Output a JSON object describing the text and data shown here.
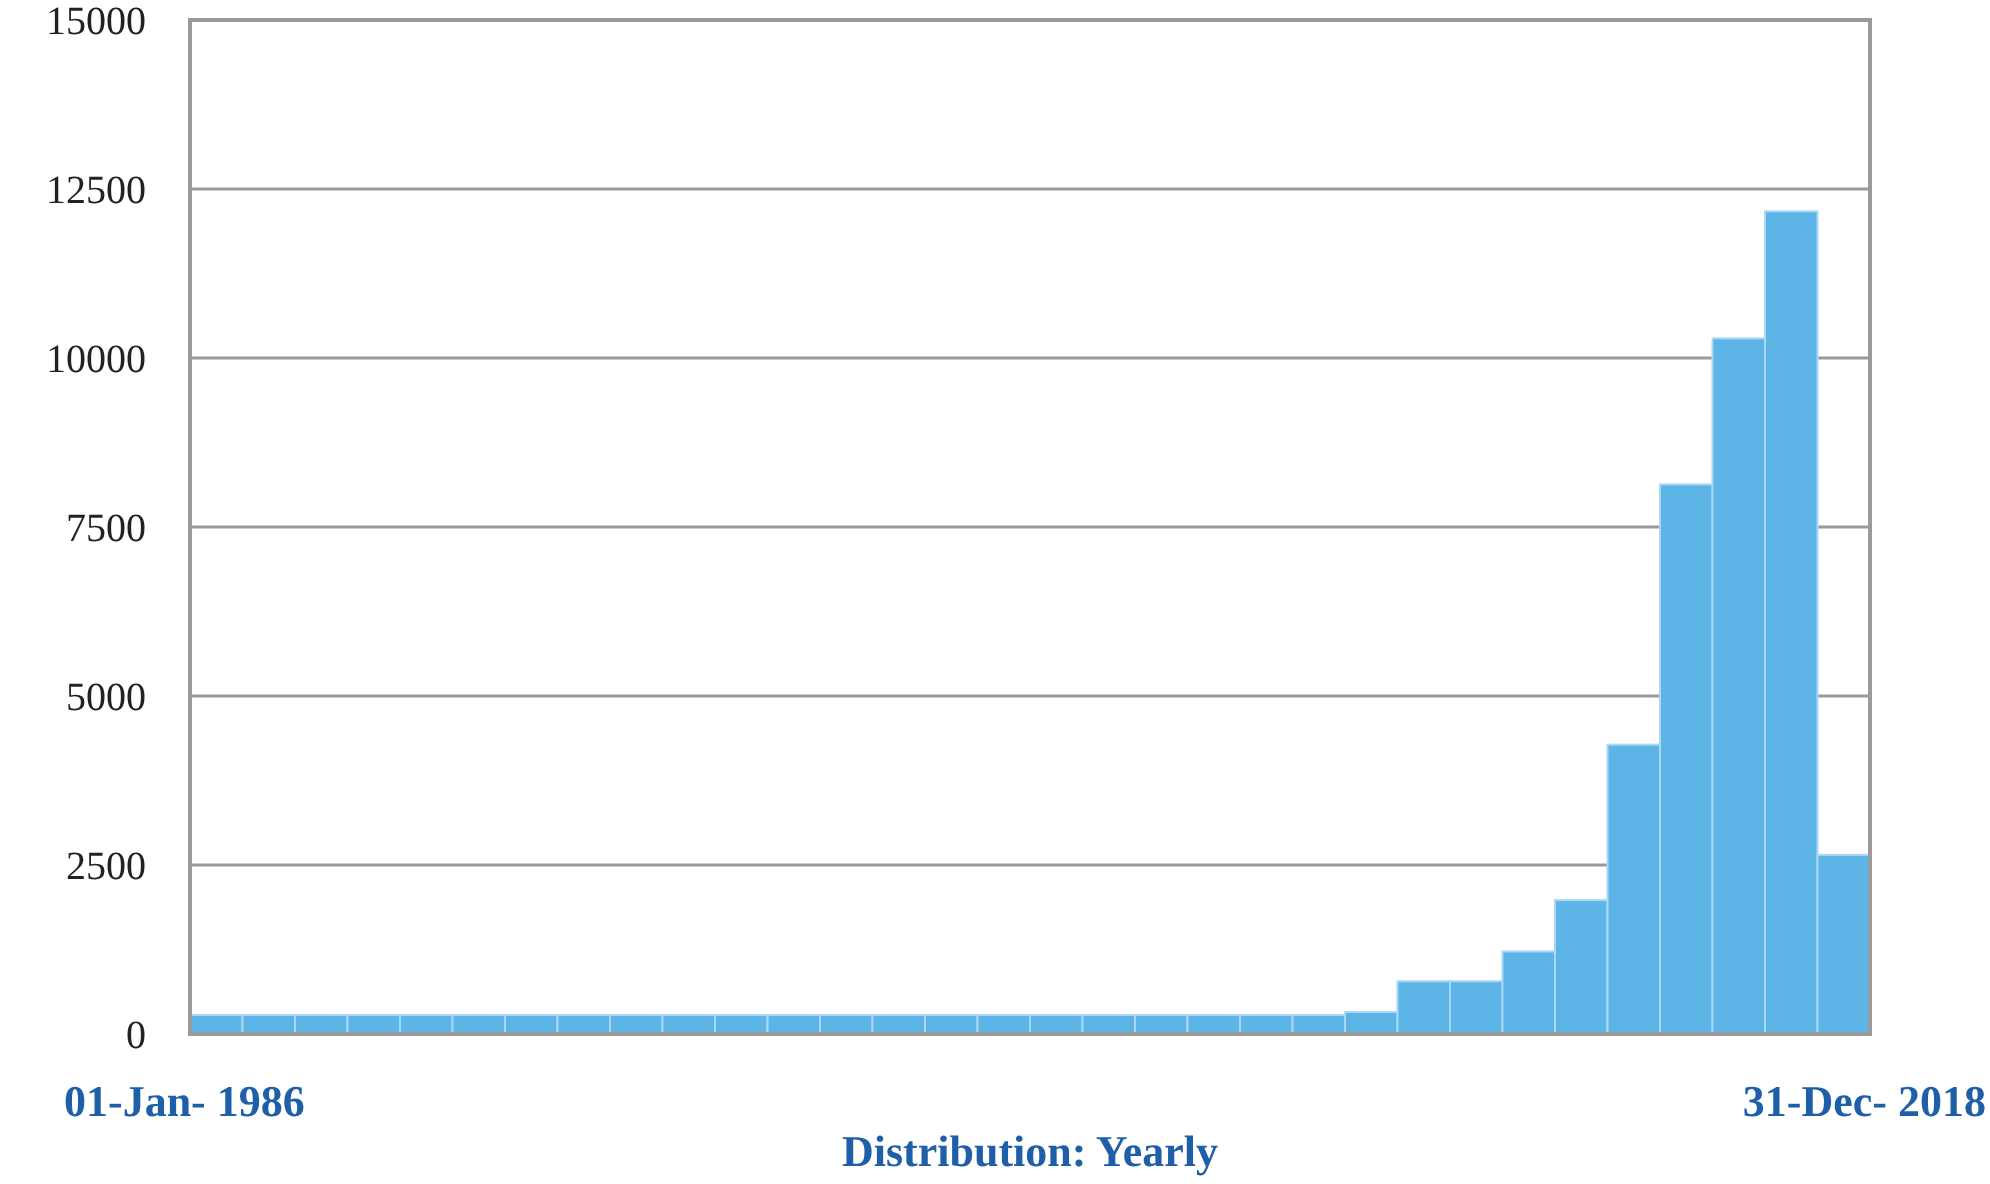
{
  "chart_data": {
    "type": "bar",
    "categories": [
      null,
      null,
      null,
      null,
      null,
      null,
      null,
      null,
      null,
      null,
      null,
      null,
      null,
      null,
      null,
      null,
      null,
      null,
      null,
      null,
      null,
      null,
      null,
      null,
      null,
      null,
      null,
      null,
      null,
      null,
      null,
      null
    ],
    "values": [
      280,
      280,
      280,
      280,
      280,
      280,
      280,
      280,
      280,
      280,
      280,
      280,
      280,
      280,
      280,
      280,
      280,
      280,
      280,
      280,
      280,
      280,
      325,
      780,
      780,
      1220,
      1980,
      4280,
      8130,
      10290,
      12170,
      2650
    ],
    "color": "#5db4e6",
    "ylim": [
      0,
      15000
    ],
    "yticks": [
      0,
      2500,
      5000,
      7500,
      10000,
      12500,
      15000
    ],
    "grid": "y",
    "xlabel": "Distribution: Yearly",
    "annotations": [
      "01-Jan- 1986",
      "31-Dec- 2018"
    ]
  }
}
